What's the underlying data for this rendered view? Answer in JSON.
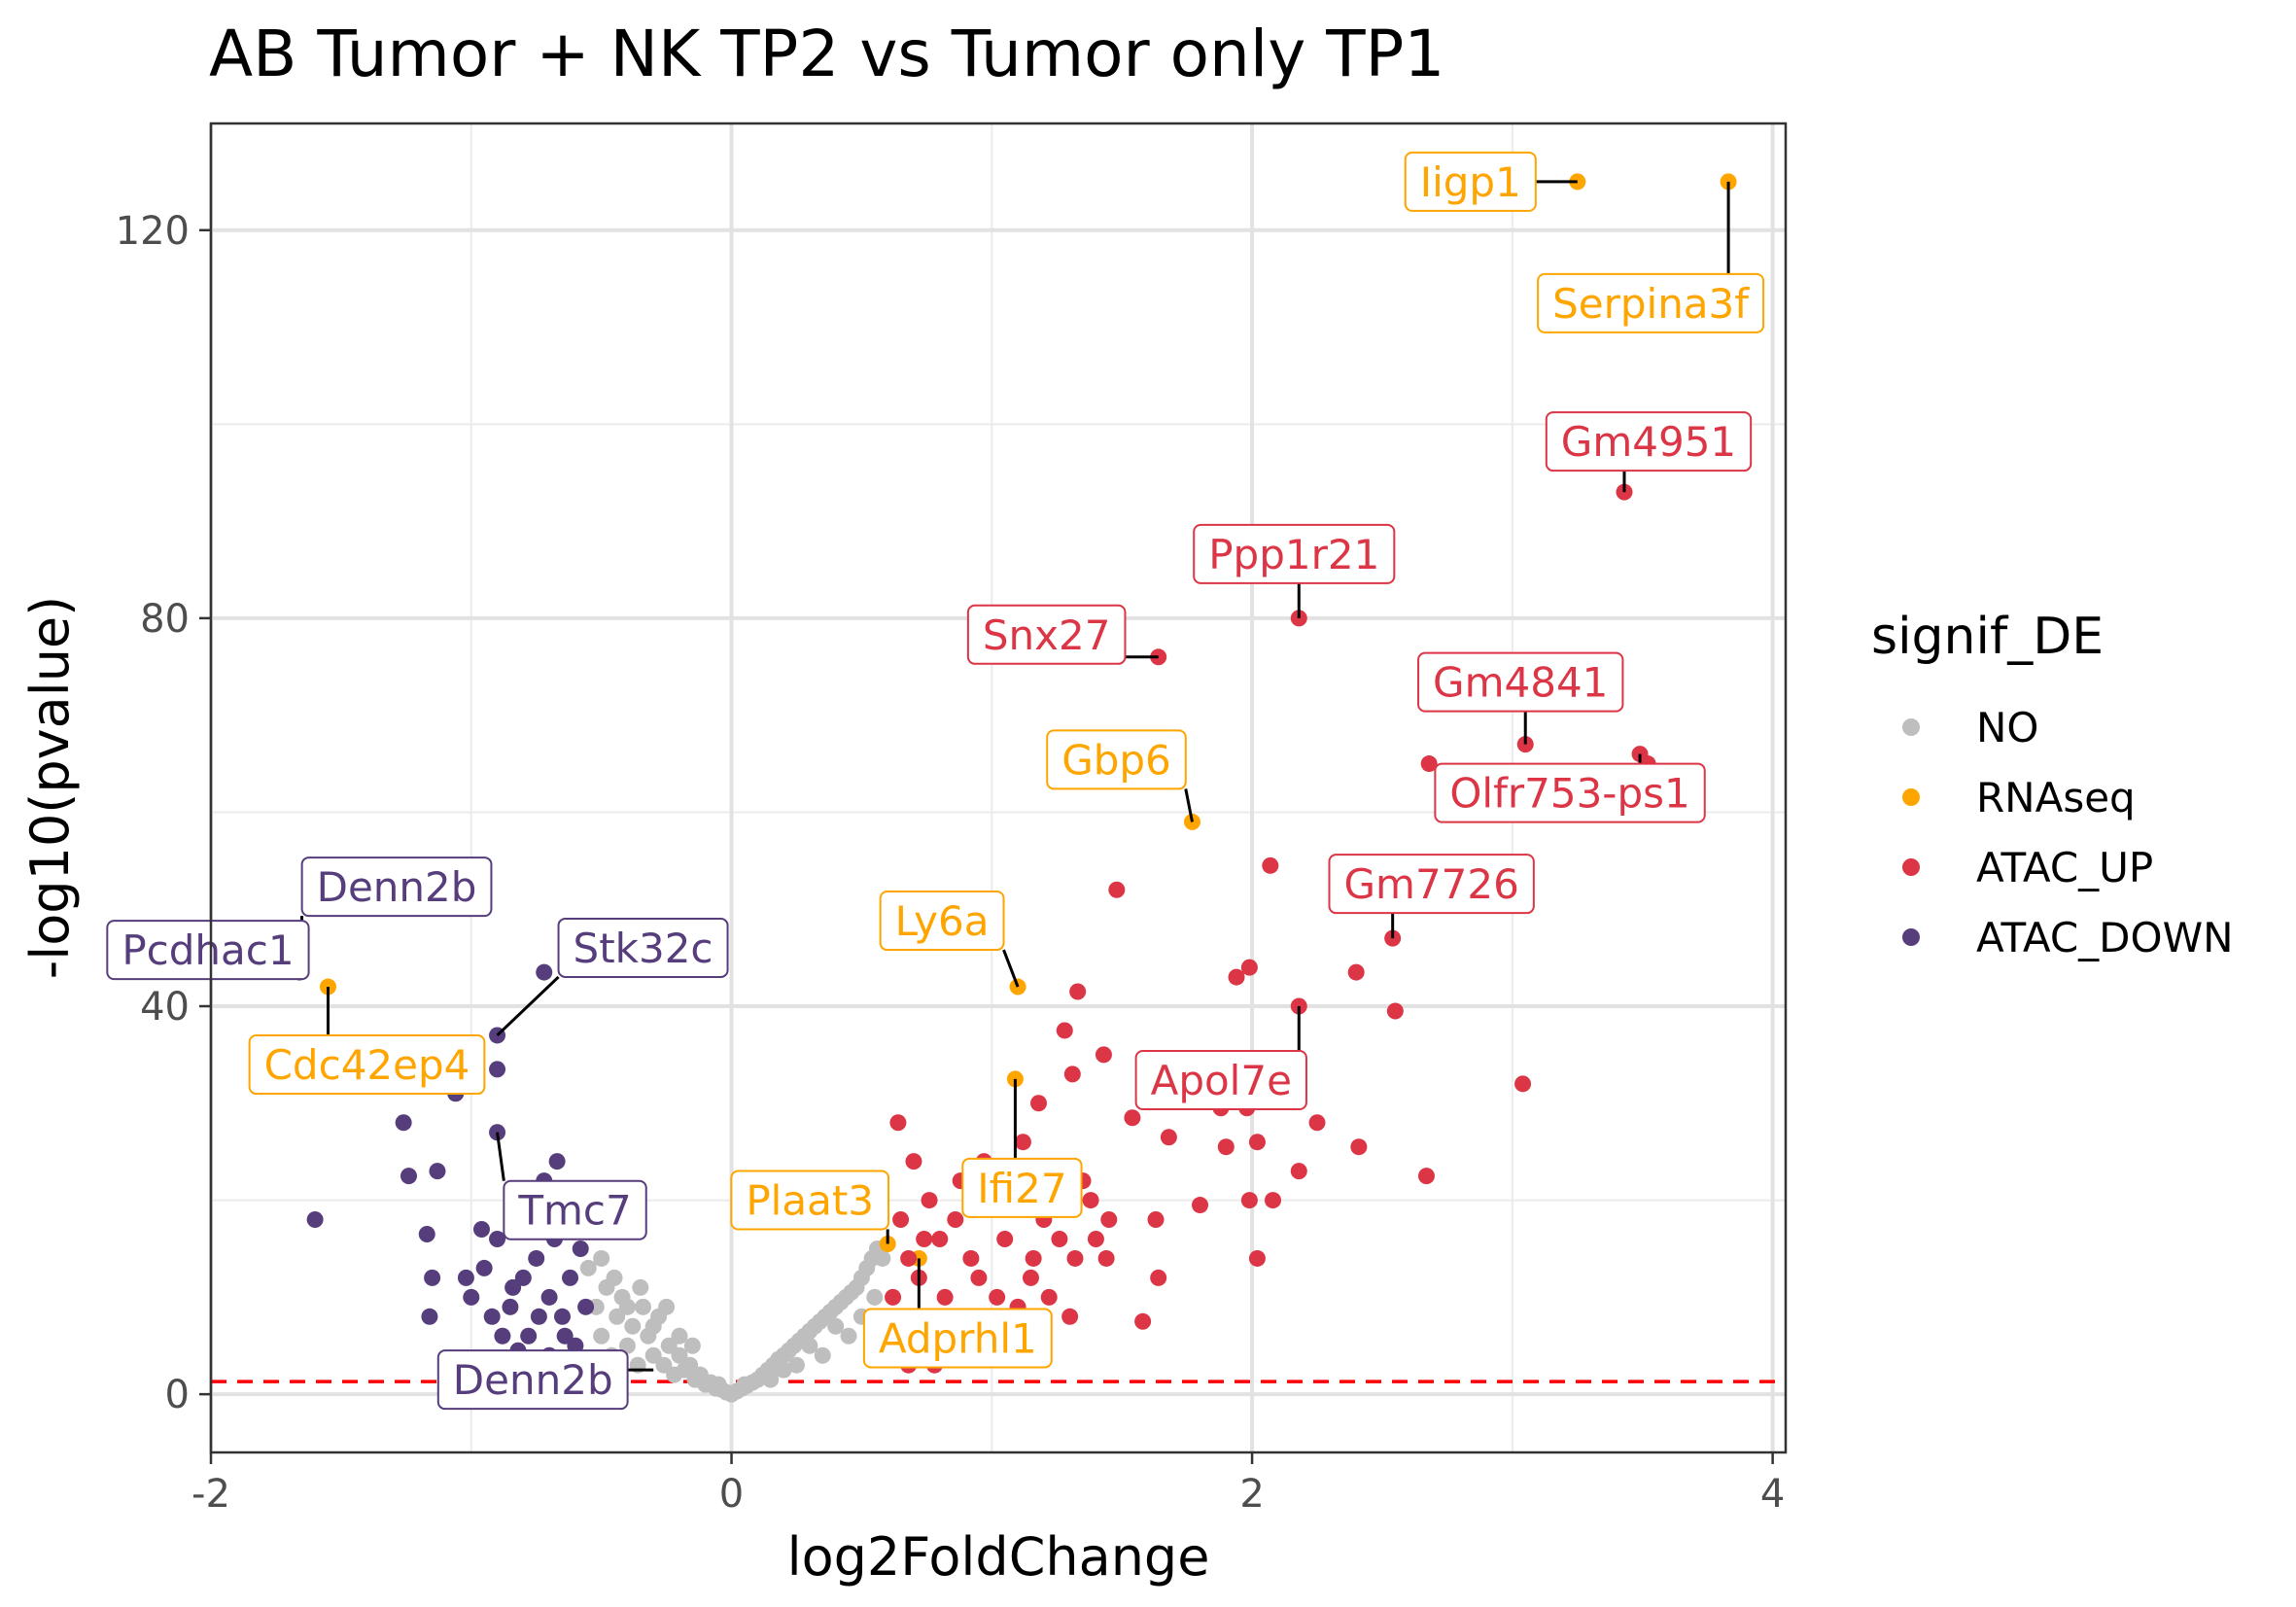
{
  "chart_data": {
    "type": "scatter",
    "title": "AB Tumor + NK TP2 vs Tumor only TP1",
    "xlabel": "log2FoldChange",
    "ylabel": "-log10(pvalue)",
    "xlim": [
      -2.0,
      4.05
    ],
    "ylim": [
      -6,
      131
    ],
    "x_ticks": [
      -2,
      0,
      2,
      4
    ],
    "x_tick_labels": [
      "-2",
      "0",
      "2",
      "4"
    ],
    "y_ticks": [
      0,
      40,
      80,
      120
    ],
    "y_tick_labels": [
      "0",
      "40",
      "80",
      "120"
    ],
    "grid": true,
    "threshold_line": {
      "y": 1.3,
      "color": "#ff0000",
      "style": "dashed"
    },
    "legend": {
      "title": "signif_DE",
      "position": "right",
      "entries": [
        {
          "name": "NO",
          "color": "#bebebe"
        },
        {
          "name": "RNAseq",
          "color": "#ffa500"
        },
        {
          "name": "ATAC_UP",
          "color": "#dc3545"
        },
        {
          "name": "ATAC_DOWN",
          "color": "#563d7c"
        }
      ]
    },
    "series": [
      {
        "name": "NO",
        "color": "#bebebe",
        "points": [
          [
            -0.55,
            13
          ],
          [
            -0.52,
            9
          ],
          [
            -0.5,
            6
          ],
          [
            -0.48,
            11
          ],
          [
            -0.46,
            4
          ],
          [
            -0.44,
            8
          ],
          [
            -0.42,
            10
          ],
          [
            -0.4,
            5
          ],
          [
            -0.38,
            7
          ],
          [
            -0.36,
            3
          ],
          [
            -0.34,
            9
          ],
          [
            -0.32,
            6
          ],
          [
            -0.3,
            4
          ],
          [
            -0.28,
            8
          ],
          [
            -0.26,
            3
          ],
          [
            -0.24,
            5
          ],
          [
            -0.22,
            2
          ],
          [
            -0.2,
            4
          ],
          [
            -0.18,
            2.5
          ],
          [
            -0.16,
            3
          ],
          [
            -0.14,
            1.5
          ],
          [
            -0.12,
            2
          ],
          [
            -0.1,
            1
          ],
          [
            -0.08,
            1.2
          ],
          [
            -0.06,
            0.6
          ],
          [
            -0.04,
            0.5
          ],
          [
            -0.02,
            0.2
          ],
          [
            0,
            0
          ],
          [
            0.02,
            0.3
          ],
          [
            0.04,
            0.6
          ],
          [
            0.06,
            0.9
          ],
          [
            0.08,
            1.2
          ],
          [
            0.1,
            1.5
          ],
          [
            0.12,
            2
          ],
          [
            0.14,
            2.5
          ],
          [
            0.16,
            3
          ],
          [
            0.18,
            3.6
          ],
          [
            0.2,
            4
          ],
          [
            0.22,
            4.5
          ],
          [
            0.24,
            5
          ],
          [
            0.26,
            5.5
          ],
          [
            0.28,
            6
          ],
          [
            0.3,
            6.5
          ],
          [
            0.32,
            7
          ],
          [
            0.34,
            7.5
          ],
          [
            0.36,
            8
          ],
          [
            0.38,
            8.5
          ],
          [
            0.4,
            9
          ],
          [
            0.42,
            9.5
          ],
          [
            0.44,
            10
          ],
          [
            0.46,
            10.5
          ],
          [
            0.48,
            11
          ],
          [
            0.5,
            12
          ],
          [
            0.52,
            13
          ],
          [
            0.54,
            14
          ],
          [
            0.56,
            15
          ],
          [
            0.58,
            14
          ],
          [
            -0.5,
            14
          ],
          [
            -0.45,
            12
          ],
          [
            -0.35,
            11
          ],
          [
            -0.25,
            9
          ],
          [
            0.3,
            5
          ],
          [
            0.4,
            7
          ],
          [
            0.5,
            8
          ],
          [
            0.55,
            10
          ],
          [
            0.45,
            6
          ],
          [
            0.35,
            4
          ],
          [
            0.25,
            3
          ],
          [
            0.15,
            1.5
          ],
          [
            0.2,
            2.5
          ],
          [
            -0.3,
            7
          ],
          [
            -0.4,
            9
          ],
          [
            -0.2,
            6
          ],
          [
            -0.15,
            5
          ],
          [
            0.05,
            1
          ],
          [
            -0.05,
            1
          ]
        ]
      },
      {
        "name": "RNAseq",
        "color": "#ffa500",
        "points": [
          [
            3.25,
            125
          ],
          [
            3.83,
            125
          ],
          [
            1.77,
            59
          ],
          [
            1.1,
            42
          ],
          [
            -1.55,
            42
          ],
          [
            1.09,
            32.5
          ],
          [
            0.6,
            15.5
          ],
          [
            0.72,
            14
          ]
        ]
      },
      {
        "name": "ATAC_UP",
        "color": "#dc3545",
        "points": [
          [
            3.43,
            93
          ],
          [
            2.18,
            80
          ],
          [
            1.64,
            76
          ],
          [
            3.05,
            67
          ],
          [
            3.49,
            66
          ],
          [
            3.52,
            65
          ],
          [
            2.68,
            65
          ],
          [
            2.07,
            54.5
          ],
          [
            1.48,
            52
          ],
          [
            2.54,
            47
          ],
          [
            2.4,
            43.5
          ],
          [
            1.99,
            44
          ],
          [
            1.94,
            43
          ],
          [
            2.18,
            40
          ],
          [
            2.55,
            39.5
          ],
          [
            1.33,
            41.5
          ],
          [
            1.28,
            37.5
          ],
          [
            1.43,
            35
          ],
          [
            1.31,
            33
          ],
          [
            3.04,
            32
          ],
          [
            1.54,
            28.5
          ],
          [
            1.68,
            26.5
          ],
          [
            1.88,
            29.5
          ],
          [
            1.98,
            29.5
          ],
          [
            2.25,
            28
          ],
          [
            2.41,
            25.5
          ],
          [
            1.9,
            25.5
          ],
          [
            2.02,
            26
          ],
          [
            2.18,
            23
          ],
          [
            2.67,
            22.5
          ],
          [
            1.8,
            19.5
          ],
          [
            1.63,
            18
          ],
          [
            2.08,
            20
          ],
          [
            1.99,
            20
          ],
          [
            2.02,
            14
          ],
          [
            1.64,
            12
          ],
          [
            1.58,
            7.5
          ],
          [
            1.25,
            20
          ],
          [
            1.35,
            22
          ],
          [
            1.45,
            18
          ],
          [
            1.2,
            18
          ],
          [
            1.32,
            14
          ],
          [
            1.4,
            16
          ],
          [
            1.15,
            12
          ],
          [
            1.05,
            16
          ],
          [
            0.95,
            20
          ],
          [
            0.88,
            22
          ],
          [
            0.8,
            16
          ],
          [
            0.72,
            12
          ],
          [
            0.65,
            18
          ],
          [
            0.62,
            10
          ],
          [
            0.75,
            8
          ],
          [
            0.85,
            6
          ],
          [
            0.9,
            4
          ],
          [
            0.68,
            3
          ],
          [
            0.78,
            3
          ],
          [
            1.0,
            6
          ],
          [
            1.1,
            9
          ],
          [
            1.22,
            10
          ],
          [
            1.3,
            8
          ],
          [
            0.95,
            12
          ],
          [
            1.05,
            20
          ],
          [
            0.7,
            24
          ],
          [
            0.64,
            28
          ],
          [
            0.97,
            24
          ],
          [
            1.12,
            26
          ],
          [
            1.18,
            30
          ],
          [
            0.82,
            10
          ],
          [
            0.6,
            7
          ],
          [
            0.66,
            5
          ],
          [
            0.74,
            16
          ],
          [
            0.92,
            14
          ],
          [
            1.02,
            10
          ],
          [
            1.16,
            14
          ],
          [
            1.26,
            16
          ],
          [
            1.38,
            20
          ],
          [
            1.44,
            14
          ],
          [
            0.86,
            18
          ],
          [
            0.76,
            20
          ],
          [
            0.68,
            14
          ]
        ]
      },
      {
        "name": "ATAC_DOWN",
        "color": "#563d7c",
        "points": [
          [
            -1.75,
            46
          ],
          [
            -1.66,
            43.5
          ],
          [
            -0.72,
            43.5
          ],
          [
            -0.9,
            37
          ],
          [
            -0.9,
            33.5
          ],
          [
            -1.06,
            31
          ],
          [
            -1.26,
            28
          ],
          [
            -0.9,
            27
          ],
          [
            -1.24,
            22.5
          ],
          [
            -1.13,
            23
          ],
          [
            -1.6,
            18
          ],
          [
            -0.67,
            24
          ],
          [
            -0.72,
            22
          ],
          [
            -1.17,
            16.5
          ],
          [
            -1.15,
            12
          ],
          [
            -1.16,
            8
          ],
          [
            -1.0,
            10
          ],
          [
            -0.95,
            13
          ],
          [
            -0.9,
            16
          ],
          [
            -0.85,
            9
          ],
          [
            -0.8,
            12
          ],
          [
            -0.78,
            6
          ],
          [
            -0.75,
            14
          ],
          [
            -0.7,
            10
          ],
          [
            -0.65,
            8
          ],
          [
            -0.62,
            12
          ],
          [
            -0.6,
            5
          ],
          [
            -0.58,
            15
          ],
          [
            -0.56,
            9
          ],
          [
            -0.7,
            4
          ],
          [
            -0.82,
            4.5
          ],
          [
            -0.88,
            6
          ],
          [
            -0.68,
            16
          ],
          [
            -0.64,
            6
          ],
          [
            -0.74,
            8
          ],
          [
            -0.84,
            11
          ],
          [
            -0.92,
            8
          ],
          [
            -1.02,
            12
          ],
          [
            -0.6,
            18
          ],
          [
            -0.66,
            19
          ],
          [
            -0.96,
            17
          ],
          [
            -0.82,
            17
          ],
          [
            -0.63,
            3
          ]
        ]
      }
    ],
    "annotations": [
      {
        "text": "Iigp1",
        "group": "RNAseq",
        "color": "#ffa500",
        "x": 3.25,
        "y": 125
      },
      {
        "text": "Serpina3f",
        "group": "RNAseq",
        "color": "#ffa500",
        "x": 3.83,
        "y": 125
      },
      {
        "text": "Gm4951",
        "group": "ATAC_UP",
        "color": "#dc3545",
        "x": 3.43,
        "y": 93
      },
      {
        "text": "Ppp1r21",
        "group": "ATAC_UP",
        "color": "#dc3545",
        "x": 2.18,
        "y": 80
      },
      {
        "text": "Snx27",
        "group": "ATAC_UP",
        "color": "#dc3545",
        "x": 1.64,
        "y": 76
      },
      {
        "text": "Gm4841",
        "group": "ATAC_UP",
        "color": "#dc3545",
        "x": 3.05,
        "y": 67
      },
      {
        "text": "Gbp6",
        "group": "RNAseq",
        "color": "#ffa500",
        "x": 1.77,
        "y": 59
      },
      {
        "text": "Olfr753-ps1",
        "group": "ATAC_UP",
        "color": "#dc3545",
        "x": 3.49,
        "y": 66
      },
      {
        "text": "Gm7726",
        "group": "ATAC_UP",
        "color": "#dc3545",
        "x": 2.54,
        "y": 47
      },
      {
        "text": "Ly6a",
        "group": "RNAseq",
        "color": "#ffa500",
        "x": 1.1,
        "y": 42
      },
      {
        "text": "Apol7e",
        "group": "ATAC_UP",
        "color": "#dc3545",
        "x": 2.18,
        "y": 40
      },
      {
        "text": "Ifi27",
        "group": "RNAseq",
        "color": "#ffa500",
        "x": 1.09,
        "y": 32.5
      },
      {
        "text": "Plaat3",
        "group": "RNAseq",
        "color": "#ffa500",
        "x": 0.6,
        "y": 15.5
      },
      {
        "text": "Adprhl1",
        "group": "RNAseq",
        "color": "#ffa500",
        "x": 0.72,
        "y": 14
      },
      {
        "text": "Denn2b",
        "group": "ATAC_DOWN",
        "color": "#563d7c",
        "x": -1.66,
        "y": 43.5
      },
      {
        "text": "Pcdhac1",
        "group": "ATAC_DOWN",
        "color": "#563d7c",
        "x": -1.75,
        "y": 46
      },
      {
        "text": "Stk32c",
        "group": "ATAC_DOWN",
        "color": "#563d7c",
        "x": -0.9,
        "y": 37
      },
      {
        "text": "Cdc42ep4",
        "group": "RNAseq",
        "color": "#ffa500",
        "x": -1.55,
        "y": 42
      },
      {
        "text": "Tmc7",
        "group": "ATAC_DOWN",
        "color": "#563d7c",
        "x": -0.9,
        "y": 27
      },
      {
        "text": "Denn2b",
        "group": "ATAC_DOWN",
        "color": "#563d7c",
        "x": -0.3,
        "y": 2.5
      }
    ]
  }
}
